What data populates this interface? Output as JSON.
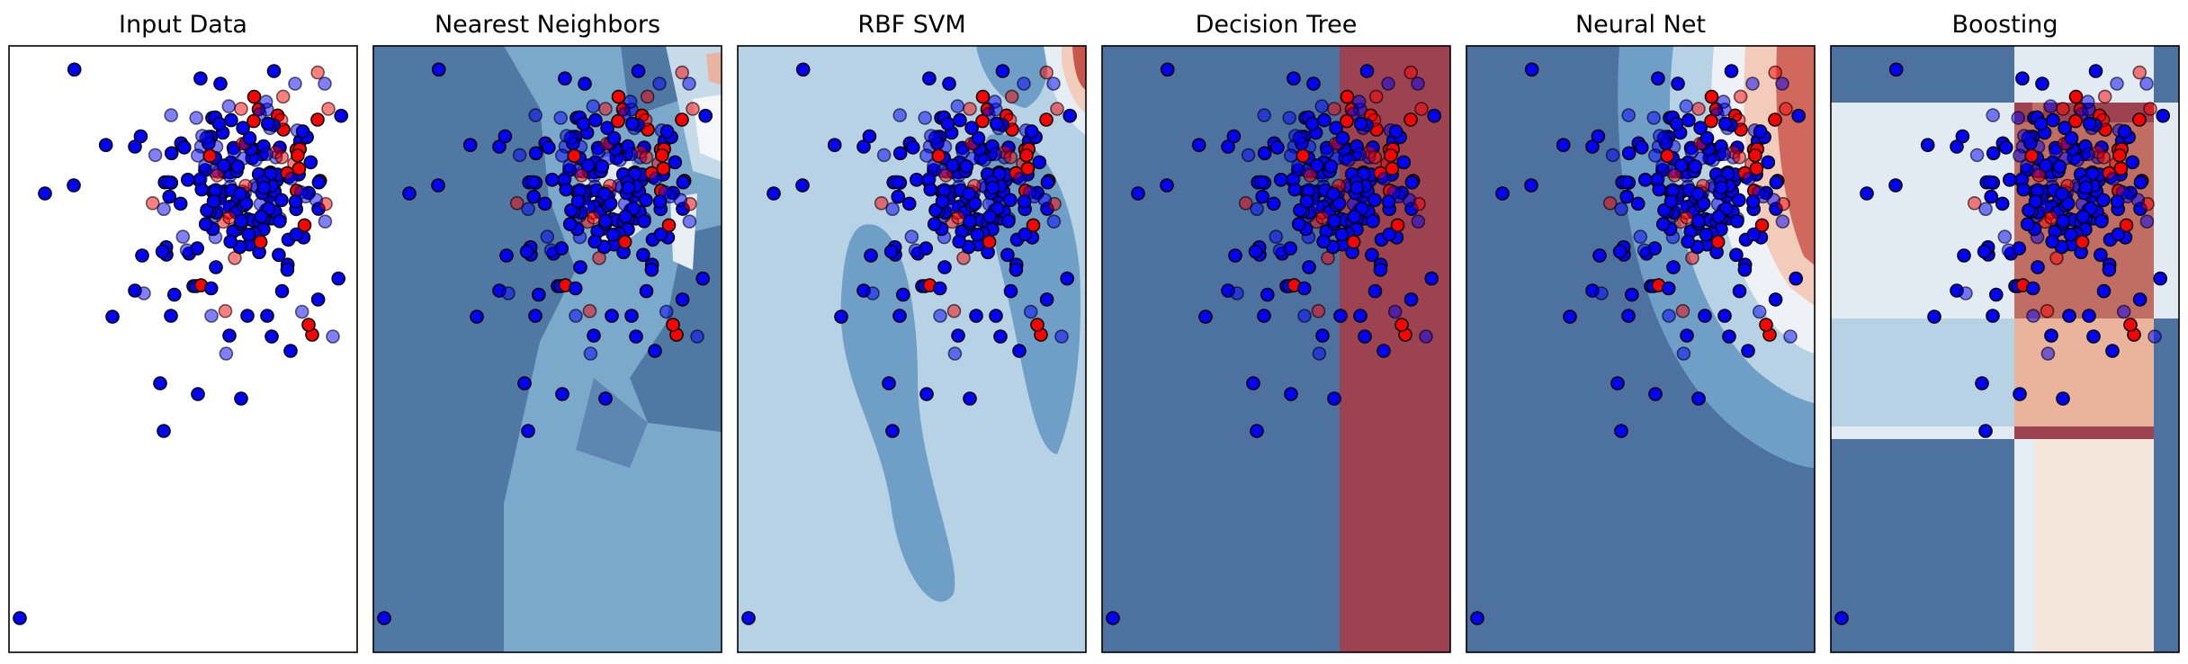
{
  "colors": {
    "class_0": "#0000ff",
    "class_1": "#ff0000",
    "marker_edge": "#000000",
    "background_cmap": "RdBu reversed (blue = class 0, red = class 1)"
  },
  "chart_data": [
    {
      "type": "scatter",
      "title": "Input Data",
      "xlabel": "",
      "ylabel": "",
      "axes_ticks": "hidden",
      "decision_surface": "none",
      "markers": "filled solid = training points, semi-transparent = test points"
    },
    {
      "type": "scatter",
      "title": "Nearest Neighbors",
      "xlabel": "",
      "ylabel": "",
      "axes_ticks": "hidden",
      "decision_surface": "irregular piecewise regions, mostly blue with a small red region near top-right"
    },
    {
      "type": "scatter",
      "title": "RBF SVM",
      "xlabel": "",
      "ylabel": "",
      "axes_ticks": "hidden",
      "decision_surface": "smooth light-blue field with darker blue blobs, red only at top-right corner"
    },
    {
      "type": "scatter",
      "title": "Decision Tree",
      "xlabel": "",
      "ylabel": "",
      "axes_ticks": "hidden",
      "decision_surface": "single vertical split: left blue, right red"
    },
    {
      "type": "scatter",
      "title": "Neural Net",
      "xlabel": "",
      "ylabel": "",
      "axes_ticks": "hidden",
      "decision_surface": "curved bands from dark blue (left) to light/orange to red (right)"
    },
    {
      "type": "scatter",
      "title": "Boosting",
      "xlabel": "",
      "ylabel": "",
      "axes_ticks": "hidden",
      "decision_surface": "axis-aligned rectangular blocks, reddish in centre column"
    }
  ]
}
